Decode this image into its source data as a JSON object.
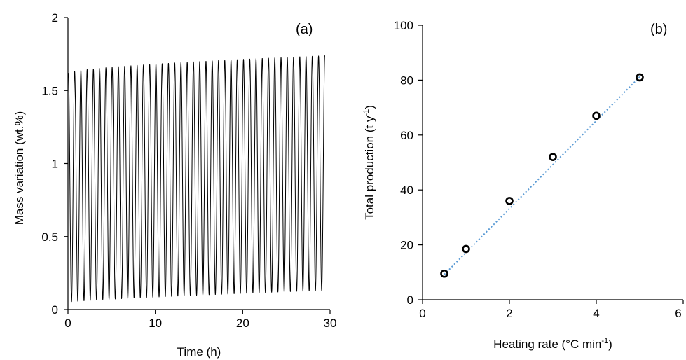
{
  "chart_data": [
    {
      "type": "line",
      "panel_label": "(a)",
      "xlabel": "Time (h)",
      "ylabel": "Mass variation (wt.%)",
      "xlim": [
        0,
        30
      ],
      "ylim": [
        0,
        2
      ],
      "x_ticks": [
        0,
        10,
        20,
        30
      ],
      "y_ticks": [
        0,
        0.5,
        1,
        1.5,
        2
      ],
      "y_tick_labels": [
        "0",
        "0.5",
        "1",
        "1.5",
        "2"
      ],
      "grid": false,
      "series": [
        {
          "cycles": 41,
          "x_start": 0.05,
          "x_end": 29.4,
          "peak_start": 1.62,
          "peak_end": 1.74,
          "trough_start": 0.05,
          "trough_end": 0.13,
          "color": "#000000"
        }
      ]
    },
    {
      "type": "scatter",
      "panel_label": "(b)",
      "xlabel_main": "Heating rate (°C min",
      "xlabel_sup": "-1",
      "xlabel_end": ")",
      "ylabel_main": "Total production (t y",
      "ylabel_sup": "-1",
      "ylabel_end": ")",
      "xlim": [
        0,
        6
      ],
      "ylim": [
        0,
        100
      ],
      "x_ticks": [
        0,
        2,
        4,
        6
      ],
      "y_ticks": [
        0,
        20,
        40,
        60,
        80,
        100
      ],
      "grid": false,
      "series": [
        {
          "x": [
            0.5,
            1,
            2,
            3,
            4,
            5
          ],
          "y": [
            9.5,
            18.5,
            36,
            52,
            67,
            81
          ],
          "marker": "open-circle",
          "color": "#000000"
        }
      ],
      "trendline": {
        "x": [
          0.5,
          5
        ],
        "y": [
          9.2,
          81.2
        ],
        "style": "dotted",
        "color": "#5B9BD5"
      }
    }
  ]
}
